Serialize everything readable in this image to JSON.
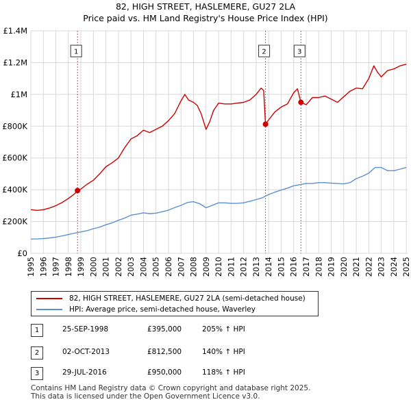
{
  "title_line1": "82, HIGH STREET, HASLEMERE, GU27 2LA",
  "title_line2": "Price paid vs. HM Land Registry's House Price Index (HPI)",
  "chart_data": {
    "type": "line",
    "title": "82, HIGH STREET, HASLEMERE, GU27 2LA — Price paid vs. HM Land Registry's House Price Index (HPI)",
    "xlim": [
      1995,
      2025.1
    ],
    "ylim": [
      0,
      1400000
    ],
    "y_ticks": [
      0,
      200000,
      400000,
      600000,
      800000,
      1000000,
      1200000,
      1400000
    ],
    "y_tick_labels": [
      "£0",
      "£200K",
      "£400K",
      "£600K",
      "£800K",
      "£1M",
      "£1.2M",
      "£1.4M"
    ],
    "x_ticks": [
      1995,
      1996,
      1997,
      1998,
      1999,
      2000,
      2001,
      2002,
      2003,
      2004,
      2005,
      2006,
      2007,
      2008,
      2009,
      2010,
      2011,
      2012,
      2013,
      2014,
      2015,
      2016,
      2017,
      2018,
      2019,
      2020,
      2021,
      2022,
      2023,
      2024,
      2025
    ],
    "x_tick_labels": [
      "1995",
      "1996",
      "1997",
      "1998",
      "1999",
      "2000",
      "2001",
      "2002",
      "2003",
      "2004",
      "2005",
      "2006",
      "2007",
      "2008",
      "2009",
      "2010",
      "2011",
      "2012",
      "2013",
      "2014",
      "2015",
      "2016",
      "2017",
      "2018",
      "2019",
      "2020",
      "2021",
      "2022",
      "2023",
      "2024",
      "2025"
    ],
    "grid": true,
    "series": [
      {
        "name": "82, HIGH STREET, HASLEMERE, GU27 2LA (semi-detached house)",
        "color": "#cc0000",
        "x": [
          1995.0,
          1995.5,
          1996.0,
          1996.5,
          1997.0,
          1997.5,
          1998.0,
          1998.5,
          1998.73,
          1999.0,
          1999.5,
          2000.0,
          2000.5,
          2001.0,
          2001.5,
          2002.0,
          2002.5,
          2003.0,
          2003.5,
          2004.0,
          2004.5,
          2005.0,
          2005.5,
          2006.0,
          2006.5,
          2007.0,
          2007.3,
          2007.6,
          2008.0,
          2008.3,
          2008.6,
          2009.0,
          2009.3,
          2009.6,
          2010.0,
          2010.5,
          2011.0,
          2011.5,
          2012.0,
          2012.5,
          2013.0,
          2013.4,
          2013.6,
          2013.75,
          2014.0,
          2014.5,
          2015.0,
          2015.5,
          2016.0,
          2016.3,
          2016.58,
          2017.0,
          2017.5,
          2018.0,
          2018.5,
          2019.0,
          2019.5,
          2020.0,
          2020.5,
          2021.0,
          2021.5,
          2022.0,
          2022.4,
          2022.7,
          2023.0,
          2023.5,
          2024.0,
          2024.5,
          2025.0
        ],
        "values": [
          275000,
          270000,
          275000,
          285000,
          300000,
          320000,
          345000,
          375000,
          395000,
          405000,
          435000,
          460000,
          500000,
          545000,
          570000,
          600000,
          665000,
          720000,
          740000,
          775000,
          760000,
          780000,
          800000,
          835000,
          880000,
          960000,
          1000000,
          965000,
          950000,
          930000,
          880000,
          780000,
          830000,
          900000,
          945000,
          940000,
          940000,
          945000,
          950000,
          965000,
          1000000,
          1040000,
          1025000,
          812500,
          840000,
          890000,
          920000,
          940000,
          1010000,
          1035000,
          950000,
          935000,
          980000,
          980000,
          990000,
          970000,
          950000,
          985000,
          1020000,
          1040000,
          1035000,
          1100000,
          1180000,
          1140000,
          1110000,
          1150000,
          1160000,
          1180000,
          1190000
        ]
      },
      {
        "name": "HPI: Average price, semi-detached house, Waverley",
        "color": "#5b8fd0",
        "x": [
          1995.0,
          1995.5,
          1996.0,
          1996.5,
          1997.0,
          1997.5,
          1998.0,
          1998.5,
          1999.0,
          1999.5,
          2000.0,
          2000.5,
          2001.0,
          2001.5,
          2002.0,
          2002.5,
          2003.0,
          2003.5,
          2004.0,
          2004.5,
          2005.0,
          2005.5,
          2006.0,
          2006.5,
          2007.0,
          2007.5,
          2008.0,
          2008.5,
          2009.0,
          2009.5,
          2010.0,
          2010.5,
          2011.0,
          2011.5,
          2012.0,
          2012.5,
          2013.0,
          2013.5,
          2014.0,
          2014.5,
          2015.0,
          2015.5,
          2016.0,
          2016.5,
          2017.0,
          2017.5,
          2018.0,
          2018.5,
          2019.0,
          2019.5,
          2020.0,
          2020.5,
          2021.0,
          2021.5,
          2022.0,
          2022.5,
          2023.0,
          2023.5,
          2024.0,
          2024.5,
          2025.0
        ],
        "values": [
          90000,
          91000,
          93000,
          97000,
          102000,
          110000,
          118000,
          127000,
          135000,
          143000,
          155000,
          165000,
          180000,
          192000,
          208000,
          222000,
          240000,
          247000,
          255000,
          250000,
          253000,
          262000,
          272000,
          288000,
          302000,
          320000,
          325000,
          312000,
          287000,
          302000,
          318000,
          318000,
          315000,
          315000,
          318000,
          328000,
          338000,
          350000,
          370000,
          385000,
          398000,
          410000,
          425000,
          432000,
          440000,
          440000,
          445000,
          445000,
          442000,
          440000,
          437000,
          445000,
          470000,
          485000,
          505000,
          540000,
          540000,
          520000,
          520000,
          530000,
          540000
        ]
      }
    ],
    "sales": [
      {
        "label": "1",
        "x": 1998.73,
        "value": 395000
      },
      {
        "label": "2",
        "x": 2013.75,
        "value": 812500
      },
      {
        "label": "3",
        "x": 2016.58,
        "value": 950000
      }
    ]
  },
  "legend": {
    "property_label": "82, HIGH STREET, HASLEMERE, GU27 2LA (semi-detached house)",
    "hpi_label": "HPI: Average price, semi-detached house, Waverley"
  },
  "transactions": [
    {
      "num": "1",
      "date": "25-SEP-1998",
      "price": "£395,000",
      "hpi": "205% ↑ HPI"
    },
    {
      "num": "2",
      "date": "02-OCT-2013",
      "price": "£812,500",
      "hpi": "140% ↑ HPI"
    },
    {
      "num": "3",
      "date": "29-JUL-2016",
      "price": "£950,000",
      "hpi": "118% ↑ HPI"
    }
  ],
  "footer": {
    "line1": "Contains HM Land Registry data © Crown copyright and database right 2025.",
    "line2": "This data is licensed under the Open Government Licence v3.0."
  }
}
